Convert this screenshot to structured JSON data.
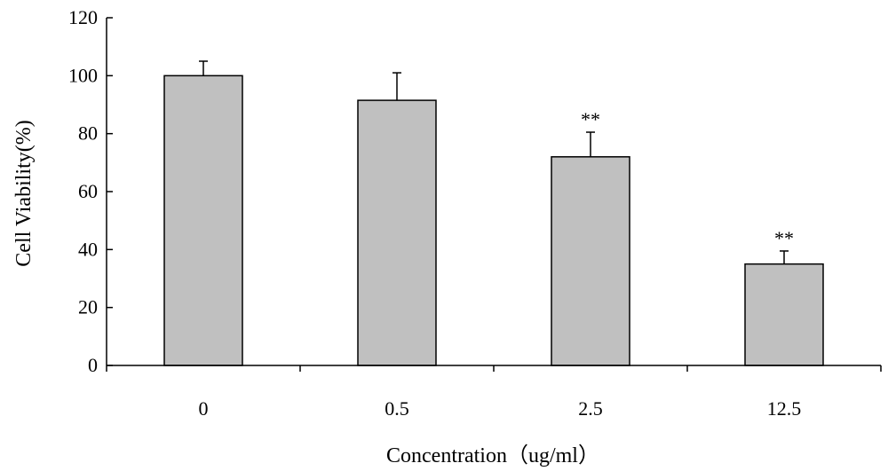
{
  "chart_data": {
    "type": "bar",
    "title": "",
    "xlabel": "Concentration（ug/ml）",
    "ylabel": "Cell Viability(%)",
    "categories": [
      "0",
      "0.5",
      "2.5",
      "12.5"
    ],
    "values": [
      100,
      91.5,
      72,
      35
    ],
    "error_bars": [
      5,
      9.5,
      8.5,
      4.5
    ],
    "annotations": [
      "",
      "",
      "**",
      "**"
    ],
    "ylim": [
      0,
      120
    ],
    "yticks": [
      "0",
      "20",
      "40",
      "60",
      "80",
      "100",
      "120"
    ],
    "grid": false,
    "legend": "none",
    "colors": {
      "bar_fill": "#c0c0c0",
      "bar_stroke": "#000000",
      "axis": "#000000",
      "background": "#ffffff"
    }
  }
}
